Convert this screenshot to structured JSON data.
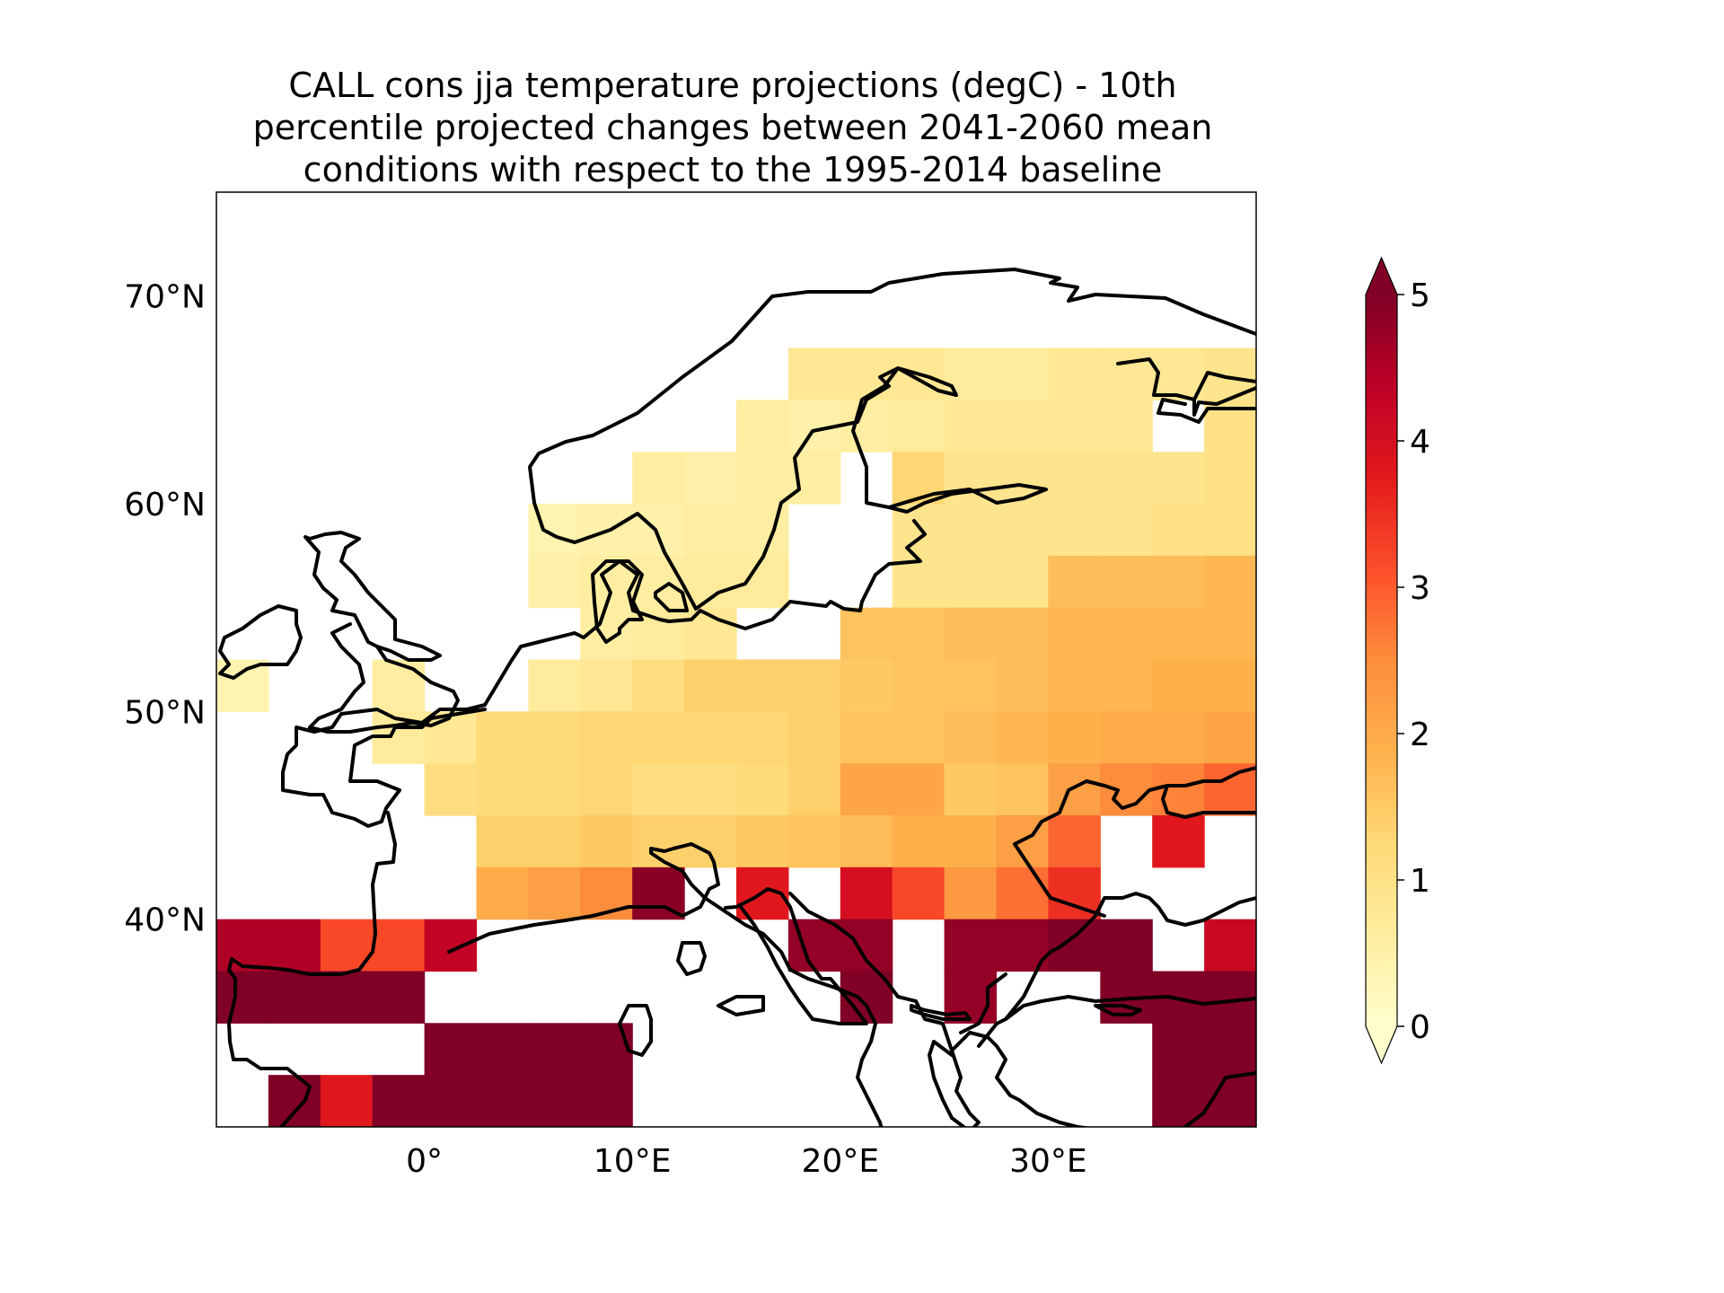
{
  "title_lines": [
    "CALL cons jja temperature projections (degC) - 10th",
    "percentile projected changes between 2041-2060 mean",
    "conditions with respect to the 1995-2014 baseline"
  ],
  "chart_data": {
    "type": "heatmap",
    "title": "CALL cons jja temperature projections (degC) - 10th percentile projected changes between 2041-2060 mean conditions with respect to the 1995-2014 baseline",
    "units": "degC",
    "projection": "PlateCarree",
    "lon_range": [
      -10,
      40
    ],
    "lat_range": [
      30,
      75
    ],
    "cell_size_deg": [
      2.5,
      2.5
    ],
    "first_cell_lon": -10,
    "first_row_lat": 70,
    "rows": [
      [
        null,
        null,
        null,
        null,
        null,
        null,
        null,
        null,
        null,
        null,
        null,
        null,
        null,
        null,
        null,
        null,
        null,
        null,
        null,
        null
      ],
      [
        null,
        null,
        null,
        null,
        null,
        null,
        null,
        null,
        null,
        null,
        null,
        0.8,
        0.8,
        0.8,
        0.7,
        0.7,
        0.8,
        0.8,
        0.8,
        0.9
      ],
      [
        null,
        null,
        null,
        null,
        null,
        null,
        null,
        null,
        null,
        null,
        0.6,
        0.5,
        0.6,
        0.7,
        0.8,
        0.8,
        0.8,
        0.8,
        null,
        1.0
      ],
      [
        null,
        null,
        null,
        null,
        null,
        null,
        null,
        null,
        0.6,
        0.5,
        0.6,
        0.6,
        null,
        1.3,
        0.9,
        0.9,
        0.9,
        0.9,
        0.9,
        1.0
      ],
      [
        null,
        null,
        null,
        null,
        null,
        null,
        0.4,
        0.5,
        0.5,
        0.6,
        0.6,
        null,
        null,
        0.9,
        0.9,
        0.9,
        0.9,
        0.9,
        1.0,
        1.0
      ],
      [
        null,
        null,
        null,
        null,
        null,
        null,
        0.5,
        0.6,
        0.6,
        0.7,
        0.7,
        null,
        null,
        0.9,
        0.9,
        0.9,
        1.7,
        1.7,
        1.7,
        1.8
      ],
      [
        null,
        null,
        null,
        null,
        null,
        null,
        null,
        0.6,
        0.7,
        0.8,
        null,
        null,
        1.6,
        1.6,
        1.7,
        1.7,
        1.8,
        1.8,
        1.8,
        1.8
      ],
      [
        0.4,
        null,
        null,
        0.6,
        null,
        null,
        0.7,
        0.8,
        1.1,
        1.4,
        1.4,
        1.4,
        1.5,
        1.6,
        1.6,
        1.7,
        1.8,
        1.8,
        1.9,
        1.9
      ],
      [
        null,
        null,
        null,
        0.7,
        0.8,
        1.2,
        1.2,
        1.3,
        1.3,
        1.3,
        1.3,
        1.4,
        1.6,
        1.6,
        1.7,
        1.8,
        1.9,
        2.0,
        2.0,
        2.1
      ],
      [
        null,
        null,
        null,
        null,
        1.1,
        1.2,
        1.2,
        1.3,
        1.1,
        1.1,
        1.2,
        1.4,
        2.1,
        2.1,
        1.5,
        1.6,
        2.2,
        2.5,
        2.6,
        2.9
      ],
      [
        null,
        null,
        null,
        null,
        null,
        1.4,
        1.4,
        1.5,
        1.4,
        1.4,
        1.5,
        1.6,
        1.7,
        1.9,
        1.9,
        2.2,
        2.9,
        null,
        3.8,
        null
      ],
      [
        null,
        null,
        null,
        null,
        null,
        2.0,
        2.2,
        2.5,
        4.9,
        null,
        3.8,
        null,
        4.0,
        3.2,
        2.3,
        2.8,
        3.5,
        null,
        null,
        null
      ],
      [
        4.5,
        4.5,
        3.2,
        3.2,
        4.3,
        null,
        null,
        null,
        null,
        null,
        null,
        4.8,
        4.8,
        null,
        4.8,
        4.8,
        5.0,
        5.0,
        null,
        4.2
      ],
      [
        5.0,
        5.0,
        5.0,
        5.0,
        null,
        null,
        null,
        null,
        null,
        null,
        null,
        null,
        5.0,
        null,
        4.8,
        null,
        null,
        5.0,
        5.0,
        5.0
      ],
      [
        null,
        null,
        null,
        null,
        5.0,
        5.0,
        5.0,
        5.0,
        null,
        null,
        null,
        null,
        null,
        null,
        null,
        null,
        null,
        null,
        5.0,
        5.0
      ],
      [
        null,
        5.0,
        3.8,
        5.0,
        5.0,
        5.0,
        5.0,
        5.0,
        null,
        null,
        null,
        null,
        null,
        null,
        null,
        null,
        null,
        null,
        5.0,
        5.0
      ],
      [
        5.0,
        5.0,
        5.0,
        5.0,
        5.0,
        null,
        5.0,
        5.0,
        5.0,
        5.0,
        null,
        null,
        null,
        5.0,
        5.0,
        null,
        5.0,
        null,
        5.0,
        5.0
      ]
    ],
    "xticks": [
      {
        "value": 0,
        "label": "0°"
      },
      {
        "value": 10,
        "label": "10°E"
      },
      {
        "value": 20,
        "label": "20°E"
      },
      {
        "value": 30,
        "label": "30°E"
      }
    ],
    "yticks": [
      {
        "value": 70,
        "label": "70°N"
      },
      {
        "value": 60,
        "label": "60°N"
      },
      {
        "value": 50,
        "label": "50°N"
      },
      {
        "value": 40,
        "label": "40°N"
      }
    ],
    "colorbar": {
      "cmap": "YlOrRd",
      "min": 0,
      "max": 5,
      "extend": "both",
      "ticks": [
        "0",
        "1",
        "2",
        "3",
        "4",
        "5"
      ]
    }
  }
}
